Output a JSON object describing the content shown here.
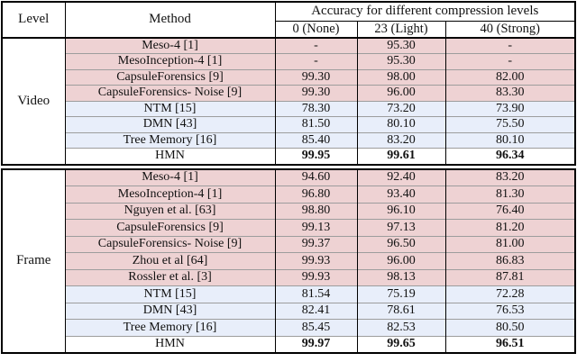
{
  "table": {
    "header": {
      "level": "Level",
      "method": "Method",
      "accuracy_title": "Accuracy for different compression levels",
      "compression_levels": [
        "0 (None)",
        "23 (Light)",
        "40 (Strong)"
      ]
    },
    "colors": {
      "pink_row": "#eed2d3",
      "blue_row": "#e8eefa",
      "white_row": "#ffffff",
      "border_outer": "#000000",
      "border_inner": "#9d9d9d"
    },
    "sections": [
      {
        "level": "Video",
        "rows": [
          {
            "method": "Meso-4 [1]",
            "values": [
              "-",
              "95.30",
              "-"
            ],
            "tone": "pink",
            "best": false
          },
          {
            "method": "MesoInception-4 [1]",
            "values": [
              "-",
              "95.30",
              "-"
            ],
            "tone": "pink",
            "best": false
          },
          {
            "method": "CapsuleForensics [9]",
            "values": [
              "99.30",
              "98.00",
              "82.00"
            ],
            "tone": "pink",
            "best": false
          },
          {
            "method": "CapsuleForensics- Noise [9]",
            "values": [
              "99.30",
              "96.00",
              "83.30"
            ],
            "tone": "pink",
            "best": false
          },
          {
            "method": "NTM [15]",
            "values": [
              "78.30",
              "73.20",
              "73.90"
            ],
            "tone": "blue",
            "best": false
          },
          {
            "method": "DMN [43]",
            "values": [
              "81.50",
              "80.10",
              "75.50"
            ],
            "tone": "blue",
            "best": false
          },
          {
            "method": "Tree Memory [16]",
            "values": [
              "85.40",
              "83.20",
              "80.10"
            ],
            "tone": "blue",
            "best": false
          },
          {
            "method": "HMN",
            "values": [
              "99.95",
              "99.61",
              "96.34"
            ],
            "tone": "white",
            "best": true
          }
        ]
      },
      {
        "level": "Frame",
        "rows": [
          {
            "method": "Meso-4 [1]",
            "values": [
              "94.60",
              "92.40",
              "83.20"
            ],
            "tone": "pink",
            "best": false
          },
          {
            "method": "MesoInception-4 [1]",
            "values": [
              "96.80",
              "93.40",
              "81.30"
            ],
            "tone": "pink",
            "best": false
          },
          {
            "method": "Nguyen et al. [63]",
            "values": [
              "98.80",
              "96.10",
              "76.40"
            ],
            "tone": "pink",
            "best": false
          },
          {
            "method": "CapsuleForensics [9]",
            "values": [
              "99.13",
              "97.13",
              "81.20"
            ],
            "tone": "pink",
            "best": false
          },
          {
            "method": "CapsuleForensics- Noise [9]",
            "values": [
              "99.37",
              "96.50",
              "81.00"
            ],
            "tone": "pink",
            "best": false
          },
          {
            "method": "Zhou et al [64]",
            "values": [
              "99.93",
              "96.00",
              "86.83"
            ],
            "tone": "pink",
            "best": false
          },
          {
            "method": "Rossler et al. [3]",
            "values": [
              "99.93",
              "98.13",
              "87.81"
            ],
            "tone": "pink",
            "best": false
          },
          {
            "method": "NTM [15]",
            "values": [
              "81.54",
              "75.19",
              "72.28"
            ],
            "tone": "blue",
            "best": false
          },
          {
            "method": "DMN [43]",
            "values": [
              "82.41",
              "78.61",
              "76.53"
            ],
            "tone": "blue",
            "best": false
          },
          {
            "method": "Tree Memory [16]",
            "values": [
              "85.45",
              "82.53",
              "80.50"
            ],
            "tone": "blue",
            "best": false
          },
          {
            "method": "HMN",
            "values": [
              "99.97",
              "99.65",
              "96.51"
            ],
            "tone": "white",
            "best": true
          }
        ]
      }
    ]
  }
}
